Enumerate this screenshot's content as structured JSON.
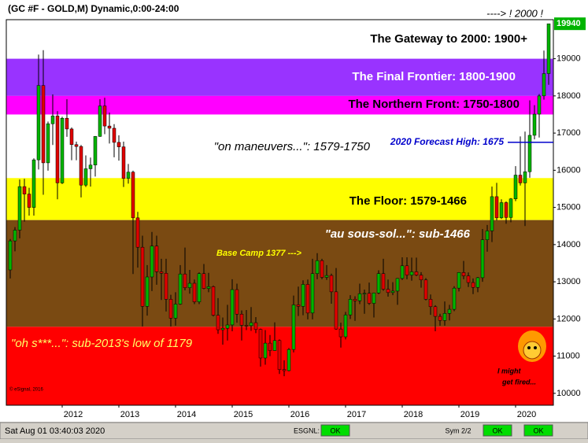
{
  "chart_data": {
    "type": "candlestick",
    "title": "(GC #F - GOLD,M) Dynamic,0:00-24:00",
    "header_note": "----> ! 2000 !",
    "categories": [
      null,
      null,
      null,
      null,
      null,
      null,
      null,
      null,
      null,
      null,
      null,
      "2012",
      null,
      null,
      null,
      null,
      null,
      null,
      null,
      null,
      null,
      null,
      null,
      "2013",
      null,
      null,
      null,
      null,
      null,
      null,
      null,
      null,
      null,
      null,
      null,
      "2014",
      null,
      null,
      null,
      null,
      null,
      null,
      null,
      null,
      null,
      null,
      null,
      "2015",
      null,
      null,
      null,
      null,
      null,
      null,
      null,
      null,
      null,
      null,
      null,
      "2016",
      null,
      null,
      null,
      null,
      null,
      null,
      null,
      null,
      null,
      null,
      null,
      "2017",
      null,
      null,
      null,
      null,
      null,
      null,
      null,
      null,
      null,
      null,
      null,
      "2018",
      null,
      null,
      null,
      null,
      null,
      null,
      null,
      null,
      null,
      null,
      null,
      "2019",
      null,
      null,
      null,
      null,
      null,
      null,
      null,
      null,
      null,
      null,
      null,
      "2020",
      null,
      null,
      null,
      null,
      null,
      null,
      null
    ],
    "open": [
      13320,
      14100,
      14390,
      15560,
      15360,
      15000,
      16280,
      18280,
      16200,
      17250,
      17460,
      15660,
      17400,
      17110,
      16690,
      16640,
      15600,
      16040,
      16140,
      16910,
      17730,
      17190,
      17130,
      16750,
      16630,
      15780,
      15950,
      14720,
      13930,
      12340,
      13130,
      13960,
      13270,
      13230,
      12530,
      12020,
      12400,
      13210,
      12840,
      12960,
      12460,
      13220,
      12820,
      12870,
      12100,
      11710,
      11750,
      11840,
      12790,
      12130,
      11830,
      11820,
      11900,
      11720,
      10950,
      11350,
      11150,
      11420,
      10640,
      10610,
      11180,
      12380,
      12340,
      12930,
      12160,
      13220,
      13570,
      13120,
      13170,
      12730,
      11730,
      11520,
      12110,
      12530,
      12490,
      12680,
      12690,
      12420,
      12700,
      13220,
      12800,
      12710,
      12750,
      13090,
      13430,
      13180,
      13270,
      13180,
      13050,
      12530,
      12330,
      12070,
      11960,
      12150,
      12260,
      12830,
      13250,
      13160,
      12980,
      12850,
      13110,
      14130,
      14370,
      15290,
      14720,
      15130,
      14730,
      15230,
      15870,
      15660,
      15960,
      16940,
      17510,
      18000,
      18600
    ],
    "high": [
      14150,
      14470,
      15750,
      15770,
      15530,
      16320,
      19110,
      19230,
      17310,
      18040,
      17590,
      17440,
      17910,
      17150,
      16770,
      16680,
      16400,
      16340,
      16920,
      17910,
      17950,
      17550,
      17240,
      16940,
      16770,
      16170,
      15990,
      14880,
      14240,
      13450,
      14340,
      14240,
      13620,
      13620,
      12650,
      12720,
      13450,
      13920,
      13320,
      13060,
      13250,
      13480,
      13240,
      12900,
      12560,
      12040,
      12380,
      13070,
      12950,
      12230,
      12240,
      12320,
      12050,
      11740,
      11700,
      11570,
      11910,
      11450,
      10890,
      11220,
      12630,
      12870,
      13040,
      13060,
      13620,
      13770,
      13620,
      13450,
      13220,
      13370,
      11900,
      12190,
      12640,
      12610,
      12950,
      12790,
      12980,
      12710,
      13310,
      13620,
      13060,
      12990,
      13100,
      13660,
      13660,
      13650,
      13650,
      13260,
      13100,
      12660,
      12370,
      12140,
      12470,
      12380,
      12880,
      13260,
      13560,
      13250,
      13090,
      13130,
      14420,
      14530,
      15560,
      15660,
      15220,
      15160,
      15250,
      16110,
      16910,
      17040,
      17880,
      17750,
      18050,
      19220,
      19940
    ],
    "low": [
      13090,
      13820,
      14170,
      14620,
      14780,
      14780,
      16020,
      15340,
      15990,
      16680,
      15220,
      15630,
      16900,
      16270,
      16270,
      15270,
      15550,
      15560,
      15830,
      16900,
      16970,
      16720,
      16350,
      16260,
      15550,
      15640,
      13210,
      13380,
      11800,
      12090,
      12750,
      12920,
      12510,
      12200,
      11800,
      11820,
      12380,
      12770,
      12680,
      12400,
      12400,
      12800,
      12720,
      12070,
      11600,
      11310,
      11420,
      11670,
      11900,
      11420,
      11700,
      11680,
      11620,
      10720,
      10770,
      11000,
      11140,
      10520,
      10460,
      10590,
      11100,
      12080,
      12100,
      11990,
      11990,
      13070,
      13070,
      13050,
      12410,
      11710,
      11230,
      11450,
      12000,
      11950,
      12400,
      12140,
      12380,
      12040,
      12670,
      12760,
      12600,
      12640,
      12380,
      13050,
      13070,
      13030,
      13150,
      12840,
      12500,
      12110,
      11670,
      11820,
      11820,
      11960,
      12210,
      12740,
      13070,
      12860,
      12670,
      12720,
      13000,
      13810,
      14070,
      14650,
      14690,
      14560,
      14600,
      15170,
      15590,
      14500,
      15800,
      16830,
      16880,
      17900,
      18300
    ],
    "close": [
      14100,
      14390,
      15560,
      15360,
      15000,
      16280,
      18280,
      16200,
      17250,
      17460,
      15660,
      17400,
      17110,
      16690,
      16640,
      15600,
      16040,
      16140,
      16910,
      17730,
      17190,
      17130,
      16750,
      16630,
      15780,
      15950,
      14720,
      13930,
      12340,
      13130,
      13960,
      13270,
      13230,
      12530,
      12020,
      12400,
      13210,
      12840,
      12960,
      12460,
      13220,
      12820,
      12870,
      12100,
      11710,
      11750,
      11840,
      12790,
      12130,
      11830,
      11820,
      11900,
      11720,
      10950,
      11350,
      11150,
      11420,
      10640,
      10610,
      11180,
      12380,
      12340,
      12930,
      12160,
      13220,
      13570,
      13120,
      13170,
      12730,
      11730,
      11520,
      12110,
      12530,
      12490,
      12680,
      12690,
      12420,
      12700,
      13220,
      12800,
      12710,
      12750,
      13090,
      13430,
      13180,
      13270,
      13180,
      13050,
      12530,
      12330,
      12070,
      11960,
      12150,
      12260,
      12830,
      13250,
      13160,
      12980,
      12850,
      13110,
      14130,
      14370,
      15290,
      14720,
      15130,
      14730,
      15230,
      15870,
      15660,
      15960,
      16940,
      17510,
      18000,
      18600,
      19940
    ],
    "up_color": "#00b400",
    "down_color": "#e00000",
    "last_value": {
      "value": 19940,
      "label": "19940"
    },
    "ylim": [
      9680,
      20050
    ],
    "yticks": [
      10000,
      11000,
      12000,
      13000,
      14000,
      15000,
      16000,
      17000,
      18000,
      19000
    ],
    "bands": [
      {
        "label": "The Gateway to 2000:  1900+",
        "from": 19000,
        "color": "#ffffff",
        "label_color": "#000000"
      },
      {
        "label": "The Final Frontier:  1800-1900",
        "from": 18000,
        "to": 19000,
        "color": "#9933ff",
        "label_color": "#ffffff"
      },
      {
        "label": "The Northern Front:  1750-1800",
        "from": 17500,
        "to": 18000,
        "color": "#ff00ff",
        "label_color": "#000000"
      },
      {
        "label": "\"on maneuvers...\":  1579-1750",
        "from": 15790,
        "to": 17500,
        "color": "#ffffff",
        "label_color": "#000000"
      },
      {
        "label": "The Floor:  1579-1466",
        "from": 14660,
        "to": 15790,
        "color": "#ffff00",
        "label_color": "#000000"
      },
      {
        "label": "\"au sous-sol...\":  sub-1466",
        "from": 11790,
        "to": 14660,
        "color": "#7a4a12",
        "label_color": "#ffffff"
      },
      {
        "label": "\"oh s***...\":  sub-2013's low of 1179",
        "to": 11790,
        "color": "#ff0000",
        "label_color": "#ffff66"
      }
    ],
    "forecast": {
      "label": "2020 Forecast High:  1675",
      "value": 16750,
      "color": "#0000cc"
    },
    "annotation": "Base Camp 1377 --->",
    "quip": [
      "I might",
      "get fired..."
    ],
    "copyright": "© eSignal, 2016"
  },
  "status_bar": {
    "time": "Sat Aug 01 03:40:03 2020",
    "feed": "ESGNL:",
    "ok": [
      "OK",
      "OK",
      "OK"
    ],
    "sym": "Sym 2/2"
  }
}
